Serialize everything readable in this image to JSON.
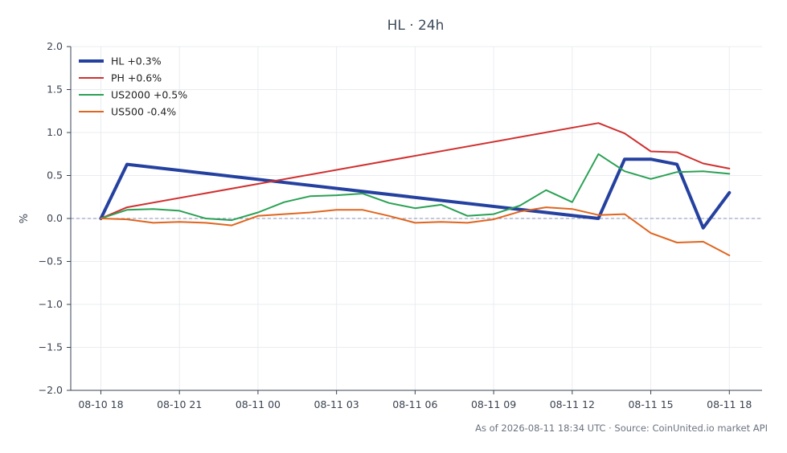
{
  "chart_data": {
    "type": "line",
    "title": "HL · 24h",
    "xlabel": "",
    "ylabel": "%",
    "ylim": [
      -2.0,
      2.0
    ],
    "yticks": [
      "2.0",
      "1.5",
      "1.0",
      "0.5",
      "0.0",
      "−0.5",
      "−1.0",
      "−1.5",
      "−2.0"
    ],
    "ytick_values": [
      2.0,
      1.5,
      1.0,
      0.5,
      0.0,
      -0.5,
      -1.0,
      -1.5,
      -2.0
    ],
    "xlim": [
      -1.15,
      25.25
    ],
    "xticks": [
      "08-10 18",
      "08-10 21",
      "08-11 00",
      "08-11 03",
      "08-11 06",
      "08-11 09",
      "08-11 12",
      "08-11 15",
      "08-11 18"
    ],
    "xtick_values": [
      0,
      3,
      6,
      9,
      12,
      15,
      18,
      21,
      24
    ],
    "x_unit": "hours since 08-10 18:00 (UTC)",
    "grid": true,
    "zero_line": true,
    "legend_position": "top-left",
    "series": [
      {
        "name": "HL +0.3%",
        "color": "#2541a0",
        "width": 4,
        "x": [
          0,
          1,
          19,
          20,
          21,
          22,
          23,
          24
        ],
        "y": [
          0.0,
          0.63,
          0.0,
          0.69,
          0.69,
          0.63,
          -0.11,
          0.3
        ]
      },
      {
        "name": "PH +0.6%",
        "color": "#d0302f",
        "width": 2,
        "x": [
          0,
          1,
          19,
          20,
          21,
          22,
          23,
          24
        ],
        "y": [
          0.0,
          0.13,
          1.11,
          0.99,
          0.78,
          0.77,
          0.64,
          0.58
        ]
      },
      {
        "name": "US2000 +0.5%",
        "color": "#2aa154",
        "width": 2,
        "x": [
          0,
          1,
          2,
          3,
          4,
          5,
          6,
          7,
          8,
          9,
          10,
          11,
          12,
          13,
          14,
          15,
          16,
          17,
          18,
          19,
          20,
          21,
          22,
          23,
          24
        ],
        "y": [
          0.0,
          0.1,
          0.11,
          0.09,
          0.0,
          -0.02,
          0.07,
          0.19,
          0.26,
          0.27,
          0.29,
          0.18,
          0.12,
          0.16,
          0.03,
          0.05,
          0.15,
          0.33,
          0.19,
          0.75,
          0.55,
          0.46,
          0.54,
          0.55,
          0.52
        ]
      },
      {
        "name": "US500 -0.4%",
        "color": "#e0651f",
        "width": 2,
        "x": [
          0,
          1,
          2,
          3,
          4,
          5,
          6,
          7,
          8,
          9,
          10,
          11,
          12,
          13,
          14,
          15,
          16,
          17,
          18,
          19,
          20,
          21,
          22,
          23,
          24
        ],
        "y": [
          0.0,
          -0.01,
          -0.05,
          -0.04,
          -0.05,
          -0.08,
          0.03,
          0.05,
          0.07,
          0.1,
          0.1,
          0.03,
          -0.05,
          -0.04,
          -0.05,
          -0.01,
          0.08,
          0.13,
          0.11,
          0.04,
          0.05,
          -0.17,
          -0.28,
          -0.27,
          -0.43
        ]
      }
    ]
  },
  "footer": "As of 2026-08-11 18:34 UTC · Source: CoinUnited.io market API",
  "colors": {
    "axis": "#3a4250",
    "grid": "#e9ecf1",
    "zero_line": "#8a92b8",
    "title": "#3d4b5c"
  }
}
